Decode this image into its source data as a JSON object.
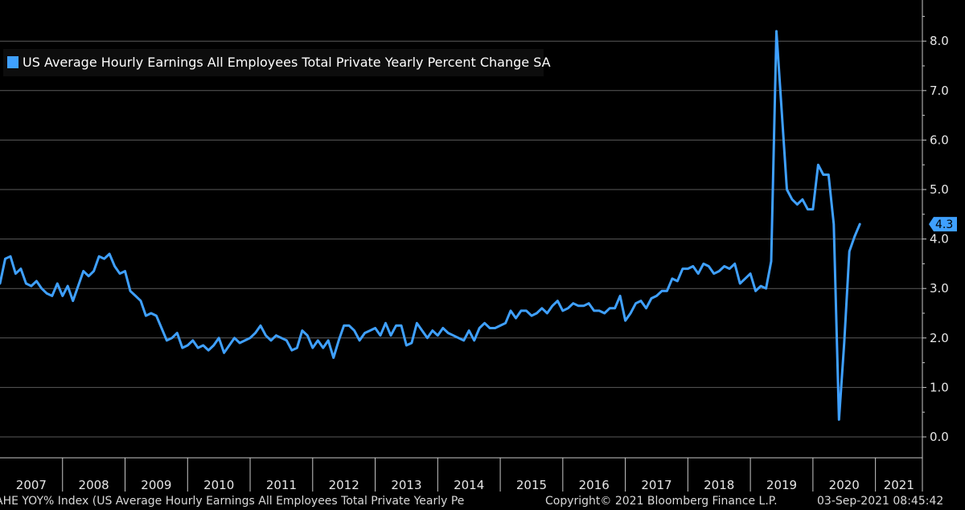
{
  "chart_data": {
    "type": "line",
    "legend": "US Average Hourly Earnings All Employees Total Private Yearly Percent Change SA",
    "series": [
      {
        "name": "US Average Hourly Earnings All Employees Total Private Yearly Percent Change SA",
        "color": "#3fa0ff",
        "x_start": "2007-01",
        "values": [
          3.1,
          3.6,
          3.65,
          3.3,
          3.4,
          3.1,
          3.05,
          3.15,
          3.0,
          2.9,
          2.85,
          3.1,
          2.85,
          3.05,
          2.75,
          3.05,
          3.35,
          3.25,
          3.35,
          3.65,
          3.6,
          3.7,
          3.45,
          3.3,
          3.35,
          2.95,
          2.85,
          2.75,
          2.45,
          2.5,
          2.45,
          2.2,
          1.95,
          2.0,
          2.1,
          1.8,
          1.85,
          1.95,
          1.8,
          1.85,
          1.75,
          1.85,
          2.0,
          1.7,
          1.85,
          2.0,
          1.9,
          1.95,
          2.0,
          2.1,
          2.25,
          2.05,
          1.95,
          2.05,
          2.0,
          1.95,
          1.75,
          1.8,
          2.15,
          2.05,
          1.8,
          1.95,
          1.8,
          1.95,
          1.6,
          1.95,
          2.25,
          2.25,
          2.15,
          1.95,
          2.1,
          2.15,
          2.2,
          2.05,
          2.3,
          2.05,
          2.25,
          2.25,
          1.85,
          1.9,
          2.3,
          2.15,
          2.0,
          2.15,
          2.05,
          2.2,
          2.1,
          2.05,
          2.0,
          1.95,
          2.15,
          1.95,
          2.2,
          2.3,
          2.2,
          2.2,
          2.25,
          2.3,
          2.55,
          2.4,
          2.55,
          2.55,
          2.45,
          2.5,
          2.6,
          2.5,
          2.65,
          2.75,
          2.55,
          2.6,
          2.7,
          2.65,
          2.65,
          2.7,
          2.55,
          2.55,
          2.5,
          2.6,
          2.6,
          2.85,
          2.35,
          2.5,
          2.7,
          2.75,
          2.6,
          2.8,
          2.85,
          2.95,
          2.95,
          3.2,
          3.15,
          3.4,
          3.4,
          3.45,
          3.3,
          3.5,
          3.45,
          3.3,
          3.35,
          3.45,
          3.4,
          3.5,
          3.1,
          3.2,
          3.3,
          2.95,
          3.05,
          3.0,
          3.55,
          8.2,
          6.6,
          5.0,
          4.8,
          4.7,
          4.8,
          4.6,
          4.6,
          5.5,
          5.3,
          5.3,
          4.3,
          0.35,
          1.9,
          3.75,
          4.05,
          4.3
        ]
      }
    ],
    "x_tick_labels": [
      "2007",
      "2008",
      "2009",
      "2010",
      "2011",
      "2012",
      "2013",
      "2014",
      "2015",
      "2016",
      "2017",
      "2018",
      "2019",
      "2020",
      "2021"
    ],
    "y_ticks": [
      0,
      1,
      2,
      3,
      4,
      5,
      6,
      7,
      8
    ],
    "y_tick_labels": [
      "0.0",
      "1.0",
      "2.0",
      "3.0",
      "4.0",
      "5.0",
      "6.0",
      "7.0",
      "8.0"
    ],
    "ylim": [
      -0.4,
      8.8
    ],
    "last_value_label": "4.3",
    "y_axis_side": "right",
    "grid": true,
    "legend_position": "top-left"
  },
  "footer": {
    "left": "AHE YOY% Index (US Average Hourly Earnings All Employees Total Private Yearly Pe",
    "center": "Copyright© 2021 Bloomberg Finance L.P.",
    "right": "03-Sep-2021 08:45:42"
  },
  "colors": {
    "background": "#000000",
    "series": "#3fa0ff",
    "grid": "#5a5a5a",
    "axis": "#c8c8c8",
    "text": "#e6e6e6"
  }
}
